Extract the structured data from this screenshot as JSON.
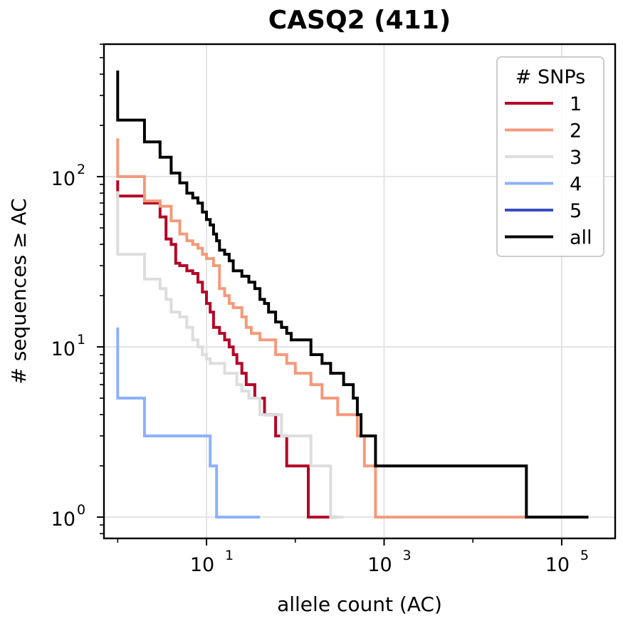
{
  "chart_data": {
    "type": "line",
    "title": "CASQ2 (411)",
    "xlabel": "allele count (AC)",
    "ylabel": "# sequences ≥ AC",
    "xscale": "log",
    "yscale": "log",
    "xlim": [
      0.7,
      400000
    ],
    "ylim": [
      0.75,
      600
    ],
    "grid": true,
    "x_ticks": [
      {
        "value": 10,
        "base": "10",
        "exp": "1"
      },
      {
        "value": 1000,
        "base": "10",
        "exp": "3"
      },
      {
        "value": 100000,
        "base": "10",
        "exp": "5"
      }
    ],
    "y_ticks": [
      {
        "value": 1,
        "base": "10",
        "exp": "0"
      },
      {
        "value": 10,
        "base": "10",
        "exp": "1"
      },
      {
        "value": 100,
        "base": "10",
        "exp": "2"
      }
    ],
    "legend": {
      "title": "# SNPs",
      "position": "top-right"
    },
    "series": [
      {
        "name": "1",
        "color": "#b40426",
        "steps": [
          [
            1,
            95
          ],
          [
            1,
            77
          ],
          [
            2,
            70
          ],
          [
            3,
            58
          ],
          [
            3.5,
            43
          ],
          [
            4,
            40
          ],
          [
            4.5,
            31
          ],
          [
            5,
            30
          ],
          [
            6,
            28
          ],
          [
            7,
            27
          ],
          [
            8,
            24
          ],
          [
            9,
            21
          ],
          [
            10,
            18
          ],
          [
            11,
            16
          ],
          [
            12,
            13
          ],
          [
            14,
            12
          ],
          [
            16,
            11
          ],
          [
            18,
            10
          ],
          [
            20,
            9
          ],
          [
            22,
            8
          ],
          [
            25,
            7
          ],
          [
            28,
            6
          ],
          [
            35,
            5
          ],
          [
            45,
            4
          ],
          [
            60,
            3
          ],
          [
            80,
            2
          ],
          [
            140,
            1
          ],
          [
            300,
            1
          ]
        ]
      },
      {
        "name": "2",
        "color": "#f49a7b",
        "steps": [
          [
            1,
            168
          ],
          [
            1,
            100
          ],
          [
            2,
            100
          ],
          [
            2,
            72
          ],
          [
            3,
            67
          ],
          [
            4,
            55
          ],
          [
            5,
            46
          ],
          [
            6,
            42
          ],
          [
            7,
            40
          ],
          [
            8,
            38
          ],
          [
            9,
            35
          ],
          [
            10,
            33
          ],
          [
            12,
            30
          ],
          [
            14,
            22
          ],
          [
            16,
            20
          ],
          [
            18,
            18
          ],
          [
            20,
            17
          ],
          [
            25,
            15
          ],
          [
            28,
            13
          ],
          [
            32,
            12
          ],
          [
            40,
            11
          ],
          [
            60,
            9
          ],
          [
            80,
            8
          ],
          [
            100,
            7
          ],
          [
            150,
            6
          ],
          [
            200,
            5
          ],
          [
            300,
            4
          ],
          [
            500,
            3
          ],
          [
            600,
            2
          ],
          [
            800,
            1
          ],
          [
            40000,
            1
          ]
        ]
      },
      {
        "name": "3",
        "color": "#dddddd",
        "steps": [
          [
            1,
            82
          ],
          [
            1,
            35
          ],
          [
            2,
            35
          ],
          [
            2,
            25
          ],
          [
            3,
            22
          ],
          [
            3.5,
            19
          ],
          [
            4,
            16
          ],
          [
            5,
            15
          ],
          [
            6,
            13
          ],
          [
            7,
            11
          ],
          [
            8,
            10
          ],
          [
            9,
            9
          ],
          [
            10,
            8.5
          ],
          [
            11,
            8
          ],
          [
            14,
            8
          ],
          [
            16,
            7
          ],
          [
            20,
            7
          ],
          [
            22,
            6
          ],
          [
            25,
            5.5
          ],
          [
            30,
            5
          ],
          [
            40,
            4
          ],
          [
            50,
            4
          ],
          [
            70,
            3
          ],
          [
            120,
            3
          ],
          [
            150,
            2
          ],
          [
            200,
            2
          ],
          [
            250,
            1
          ],
          [
            350,
            1
          ]
        ]
      },
      {
        "name": "4",
        "color": "#8db0fe",
        "steps": [
          [
            1,
            13
          ],
          [
            1,
            5
          ],
          [
            2,
            5
          ],
          [
            2,
            3
          ],
          [
            3,
            3
          ],
          [
            6,
            3
          ],
          [
            10,
            3
          ],
          [
            11,
            2
          ],
          [
            12,
            2
          ],
          [
            13,
            1
          ],
          [
            40,
            1
          ]
        ]
      },
      {
        "name": "5",
        "color": "#3b4cc0",
        "steps": []
      },
      {
        "name": "all",
        "color": "#000000",
        "steps": [
          [
            1,
            420
          ],
          [
            1,
            215
          ],
          [
            1.5,
            215
          ],
          [
            2,
            215
          ],
          [
            2,
            160
          ],
          [
            3,
            160
          ],
          [
            3,
            130
          ],
          [
            4,
            105
          ],
          [
            5,
            92
          ],
          [
            6,
            80
          ],
          [
            7,
            75
          ],
          [
            8,
            70
          ],
          [
            9,
            62
          ],
          [
            10,
            56
          ],
          [
            11,
            52
          ],
          [
            12,
            46
          ],
          [
            13,
            42
          ],
          [
            14,
            37
          ],
          [
            16,
            35
          ],
          [
            18,
            32
          ],
          [
            20,
            28
          ],
          [
            25,
            26
          ],
          [
            30,
            24
          ],
          [
            35,
            22
          ],
          [
            40,
            19
          ],
          [
            45,
            18
          ],
          [
            50,
            16
          ],
          [
            60,
            14
          ],
          [
            70,
            13
          ],
          [
            80,
            12
          ],
          [
            90,
            11
          ],
          [
            120,
            11
          ],
          [
            150,
            9
          ],
          [
            200,
            8
          ],
          [
            250,
            7
          ],
          [
            350,
            6
          ],
          [
            450,
            5
          ],
          [
            500,
            4
          ],
          [
            550,
            3
          ],
          [
            600,
            3
          ],
          [
            800,
            2
          ],
          [
            1000,
            2
          ],
          [
            40000,
            1
          ],
          [
            200000,
            1
          ]
        ]
      }
    ]
  }
}
